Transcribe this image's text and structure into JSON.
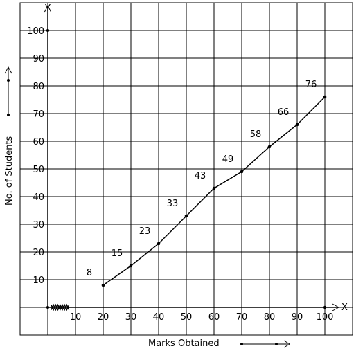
{
  "chart_data": {
    "type": "line",
    "title": "",
    "xlabel": "Marks Obtained",
    "ylabel": "No. of Students",
    "x_axis_letter": "X",
    "y_axis_letter": "Y",
    "xlim": [
      0,
      100
    ],
    "ylim": [
      0,
      100
    ],
    "grid": true,
    "x_ticks": [
      "10",
      "20",
      "30",
      "40",
      "50",
      "60",
      "70",
      "80",
      "90",
      "100"
    ],
    "y_ticks": [
      "10",
      "20",
      "30",
      "40",
      "50",
      "60",
      "70",
      "80",
      "90",
      "100"
    ],
    "axis_break": "x",
    "series": [
      {
        "x": [
          20,
          30,
          40,
          50,
          60,
          70,
          80,
          90,
          100
        ],
        "y": [
          8,
          15,
          23,
          33,
          43,
          49,
          58,
          66,
          76
        ],
        "labels": [
          "8",
          "15",
          "23",
          "33",
          "43",
          "49",
          "58",
          "66",
          "76"
        ]
      }
    ]
  }
}
